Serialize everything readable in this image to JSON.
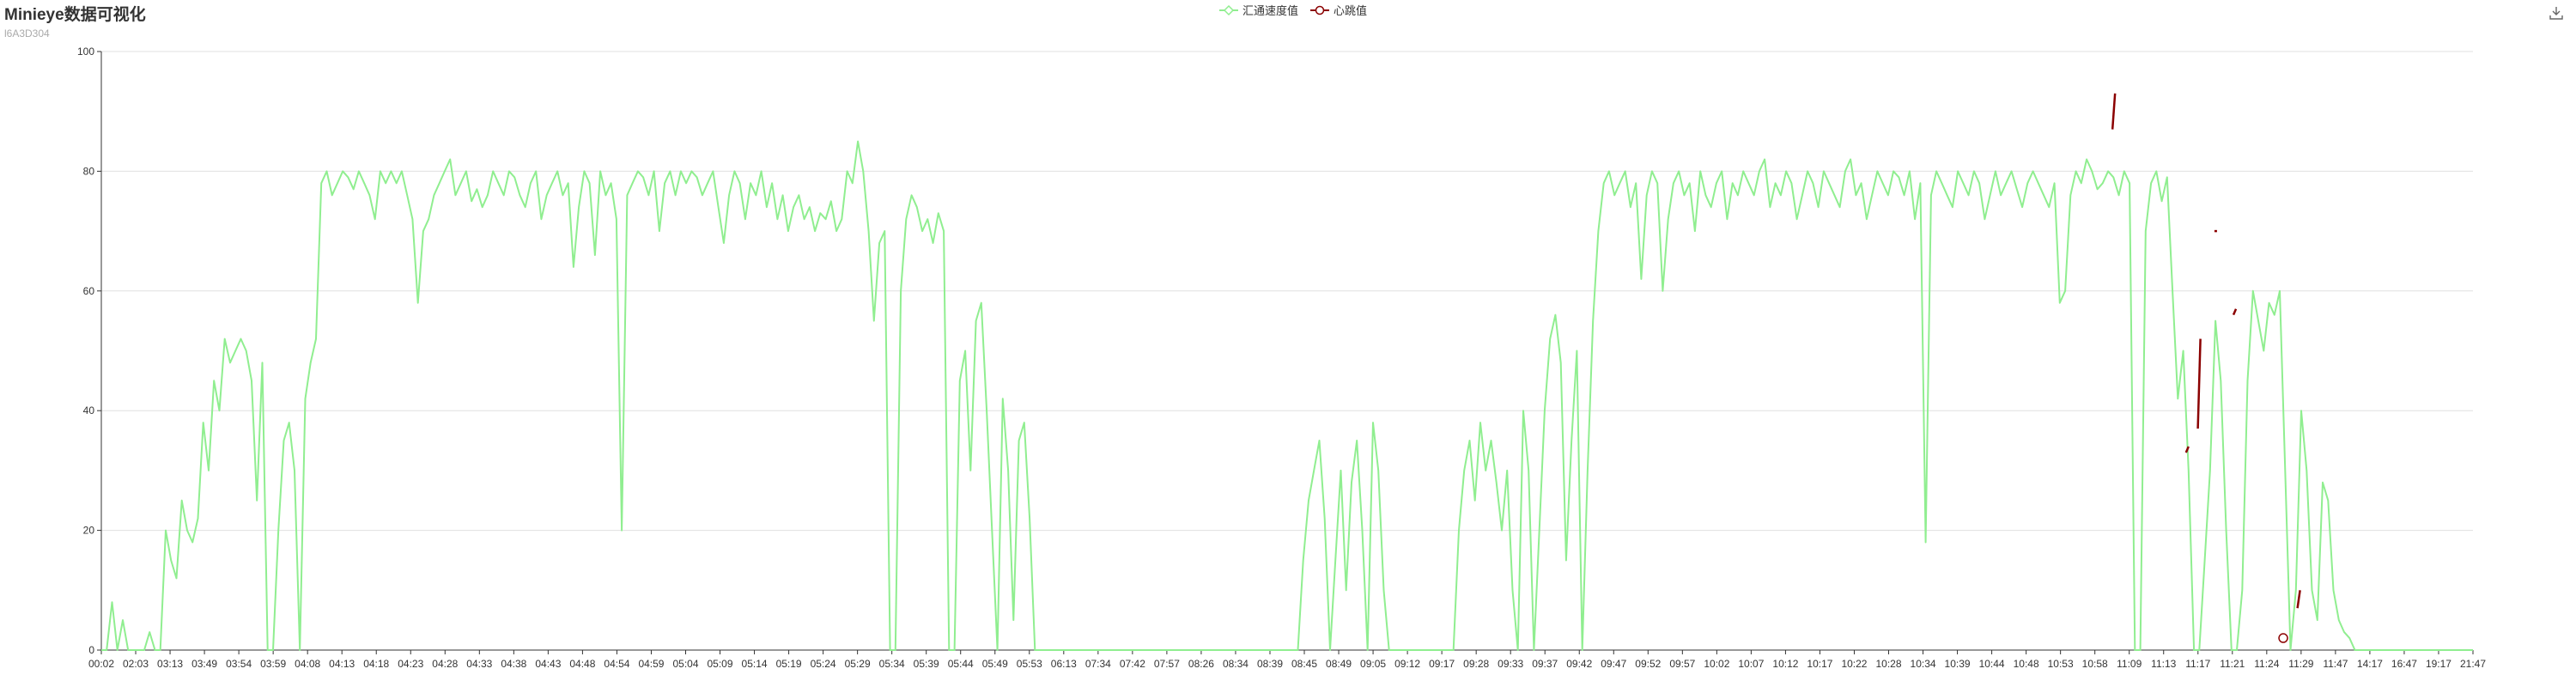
{
  "header": {
    "title": "Minieye数据可视化",
    "subtitle": "l6A3D304"
  },
  "legend": {
    "items": [
      {
        "label": "汇通速度值",
        "color": "#90ee90",
        "icon": "hollow-diamond-icon"
      },
      {
        "label": "心跳值",
        "color": "#8b0000",
        "icon": "hollow-circle-icon"
      }
    ]
  },
  "toolbox": {
    "icon": "download-icon"
  },
  "chart_data": {
    "type": "line",
    "grid": true,
    "ylim": [
      0,
      100
    ],
    "yticks": [
      0,
      20,
      40,
      60,
      80,
      100
    ],
    "xticks": [
      "00:02",
      "02:03",
      "03:13",
      "03:49",
      "03:54",
      "03:59",
      "04:08",
      "04:13",
      "04:18",
      "04:23",
      "04:28",
      "04:33",
      "04:38",
      "04:43",
      "04:48",
      "04:54",
      "04:59",
      "05:04",
      "05:09",
      "05:14",
      "05:19",
      "05:24",
      "05:29",
      "05:34",
      "05:39",
      "05:44",
      "05:49",
      "05:53",
      "06:13",
      "07:34",
      "07:42",
      "07:57",
      "08:26",
      "08:34",
      "08:39",
      "08:45",
      "08:49",
      "09:05",
      "09:12",
      "09:17",
      "09:28",
      "09:33",
      "09:37",
      "09:42",
      "09:47",
      "09:52",
      "09:57",
      "10:02",
      "10:07",
      "10:12",
      "10:17",
      "10:22",
      "10:28",
      "10:34",
      "10:39",
      "10:44",
      "10:48",
      "10:53",
      "10:58",
      "11:09",
      "11:13",
      "11:17",
      "11:21",
      "11:24",
      "11:29",
      "11:47",
      "14:17",
      "16:47",
      "19:17",
      "21:47"
    ],
    "series": [
      {
        "name": "汇通速度值",
        "color": "#90ee90",
        "values": [
          0,
          0,
          8,
          0,
          5,
          0,
          0,
          0,
          0,
          3,
          0,
          0,
          20,
          15,
          12,
          25,
          20,
          18,
          22,
          38,
          30,
          45,
          40,
          52,
          48,
          50,
          52,
          50,
          45,
          25,
          48,
          0,
          0,
          20,
          35,
          38,
          30,
          0,
          42,
          48,
          52,
          78,
          80,
          76,
          78,
          80,
          79,
          77,
          80,
          78,
          76,
          72,
          80,
          78,
          80,
          78,
          80,
          76,
          72,
          58,
          70,
          72,
          76,
          78,
          80,
          82,
          76,
          78,
          80,
          75,
          77,
          74,
          76,
          80,
          78,
          76,
          80,
          79,
          76,
          74,
          78,
          80,
          72,
          76,
          78,
          80,
          76,
          78,
          64,
          74,
          80,
          78,
          66,
          80,
          76,
          78,
          72,
          20,
          76,
          78,
          80,
          79,
          76,
          80,
          70,
          78,
          80,
          76,
          80,
          78,
          80,
          79,
          76,
          78,
          80,
          74,
          68,
          76,
          80,
          78,
          72,
          78,
          76,
          80,
          74,
          78,
          72,
          76,
          70,
          74,
          76,
          72,
          74,
          70,
          73,
          72,
          75,
          70,
          72,
          80,
          78,
          85,
          80,
          70,
          55,
          68,
          70,
          0,
          0,
          60,
          72,
          76,
          74,
          70,
          72,
          68,
          73,
          70,
          0,
          0,
          45,
          50,
          30,
          55,
          58,
          40,
          20,
          0,
          42,
          30,
          5,
          35,
          38,
          22,
          0,
          0,
          0,
          0,
          0,
          0,
          0,
          0,
          0,
          0,
          0,
          0,
          0,
          0,
          0,
          0,
          0,
          0,
          0,
          0,
          0,
          0,
          0,
          0,
          0,
          0,
          0,
          0,
          0,
          0,
          0,
          0,
          0,
          0,
          0,
          0,
          0,
          0,
          0,
          0,
          0,
          0,
          0,
          0,
          0,
          0,
          0,
          0,
          0,
          0,
          15,
          25,
          30,
          35,
          22,
          0,
          15,
          30,
          10,
          28,
          35,
          20,
          0,
          38,
          30,
          10,
          0,
          0,
          0,
          0,
          0,
          0,
          0,
          0,
          0,
          0,
          0,
          0,
          0,
          20,
          30,
          35,
          25,
          38,
          30,
          35,
          28,
          20,
          30,
          10,
          0,
          40,
          30,
          0,
          20,
          40,
          52,
          56,
          48,
          15,
          35,
          50,
          0,
          30,
          55,
          70,
          78,
          80,
          76,
          78,
          80,
          74,
          78,
          62,
          76,
          80,
          78,
          60,
          72,
          78,
          80,
          76,
          78,
          70,
          80,
          76,
          74,
          78,
          80,
          72,
          78,
          76,
          80,
          78,
          76,
          80,
          82,
          74,
          78,
          76,
          80,
          78,
          72,
          76,
          80,
          78,
          74,
          80,
          78,
          76,
          74,
          80,
          82,
          76,
          78,
          72,
          76,
          80,
          78,
          76,
          80,
          79,
          76,
          80,
          72,
          78,
          18,
          76,
          80,
          78,
          76,
          74,
          80,
          78,
          76,
          80,
          78,
          72,
          76,
          80,
          76,
          78,
          80,
          77,
          74,
          78,
          80,
          78,
          76,
          74,
          78,
          58,
          60,
          76,
          80,
          78,
          82,
          80,
          77,
          78,
          80,
          79,
          76,
          80,
          78,
          0,
          0,
          70,
          78,
          80,
          75,
          79,
          60,
          42,
          50,
          30,
          0,
          0,
          15,
          30,
          55,
          45,
          20,
          0,
          0,
          10,
          45,
          60,
          55,
          50,
          58,
          56,
          60,
          30,
          0,
          10,
          40,
          30,
          10,
          5,
          28,
          25,
          10,
          5,
          3,
          2,
          0,
          0,
          0,
          0,
          0,
          0,
          0,
          0,
          0,
          0,
          0,
          0,
          0,
          0,
          0,
          0,
          0,
          0,
          0,
          0,
          0,
          0,
          0
        ]
      },
      {
        "name": "心跳值",
        "color": "#8b0000",
        "segments": [
          {
            "x": 0.848,
            "values": [
              87,
              93
            ]
          },
          {
            "x": 0.879,
            "values": [
              33,
              34
            ]
          },
          {
            "x": 0.884,
            "values": [
              37,
              52
            ]
          },
          {
            "x": 0.891,
            "values": [
              70,
              70
            ]
          },
          {
            "x": 0.899,
            "values": [
              56,
              57
            ]
          },
          {
            "x": 0.926,
            "values": [
              7,
              10
            ]
          }
        ],
        "points": [
          {
            "x": 0.92,
            "value": 2
          }
        ]
      }
    ]
  }
}
